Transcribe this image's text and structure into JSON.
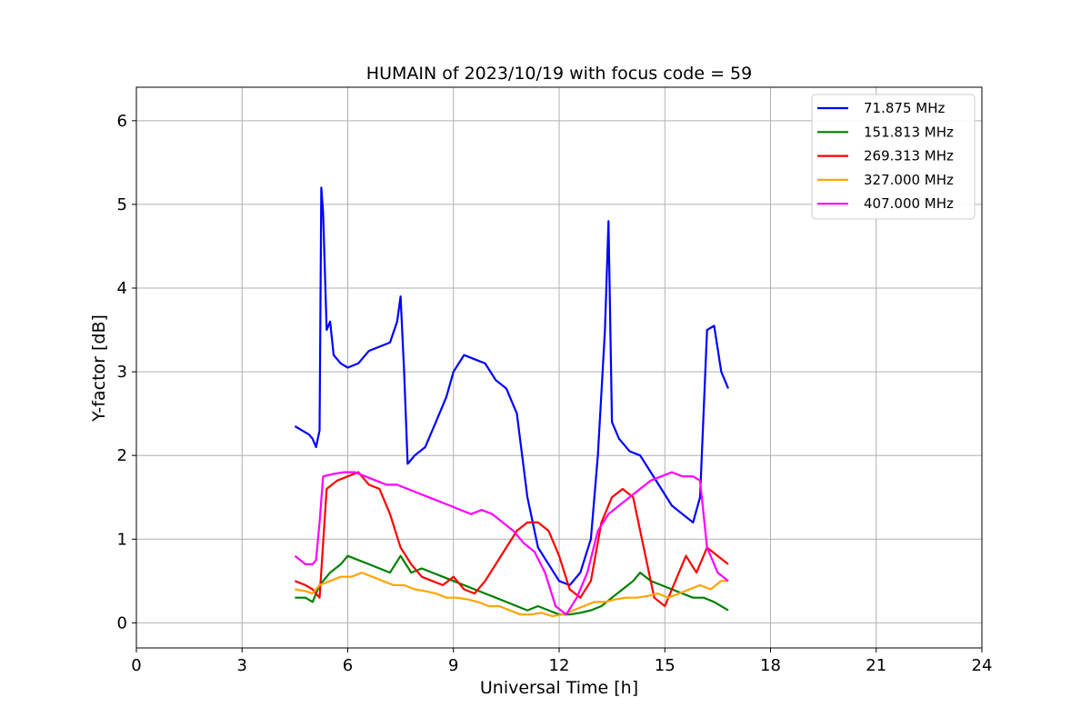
{
  "chart_data": {
    "type": "line",
    "title": "HUMAIN of 2023/10/19 with focus code = 59",
    "xlabel": "Universal Time [h]",
    "ylabel": "Y-factor [dB]",
    "xlim": [
      0,
      24
    ],
    "ylim": [
      -0.3,
      6.4
    ],
    "xticks": [
      0,
      3,
      6,
      9,
      12,
      15,
      18,
      21,
      24
    ],
    "yticks": [
      0,
      1,
      2,
      3,
      4,
      5,
      6
    ],
    "grid": true,
    "legend_position": "top-right",
    "series": [
      {
        "name": "71.875 MHz",
        "color": "#0000ff",
        "x": [
          4.5,
          4.7,
          4.9,
          5.0,
          5.1,
          5.2,
          5.25,
          5.3,
          5.4,
          5.5,
          5.6,
          5.8,
          6.0,
          6.3,
          6.6,
          6.9,
          7.2,
          7.4,
          7.5,
          7.6,
          7.7,
          7.9,
          8.2,
          8.5,
          8.8,
          9.0,
          9.3,
          9.6,
          9.9,
          10.2,
          10.5,
          10.8,
          11.1,
          11.4,
          11.7,
          12.0,
          12.3,
          12.6,
          12.9,
          13.1,
          13.3,
          13.4,
          13.5,
          13.7,
          14.0,
          14.3,
          14.6,
          14.9,
          15.2,
          15.5,
          15.8,
          16.0,
          16.2,
          16.4,
          16.6,
          16.8
        ],
        "y": [
          2.35,
          2.3,
          2.25,
          2.2,
          2.1,
          2.3,
          5.2,
          4.9,
          3.5,
          3.6,
          3.2,
          3.1,
          3.05,
          3.1,
          3.25,
          3.3,
          3.35,
          3.6,
          3.9,
          3.0,
          1.9,
          2.0,
          2.1,
          2.4,
          2.7,
          3.0,
          3.2,
          3.15,
          3.1,
          2.9,
          2.8,
          2.5,
          1.5,
          0.9,
          0.7,
          0.5,
          0.45,
          0.6,
          1.0,
          2.0,
          3.5,
          4.8,
          2.4,
          2.2,
          2.05,
          2.0,
          1.8,
          1.6,
          1.4,
          1.3,
          1.2,
          1.5,
          3.5,
          3.55,
          3.0,
          2.8
        ]
      },
      {
        "name": "151.813 MHz",
        "color": "#008000",
        "x": [
          4.5,
          4.8,
          5.0,
          5.2,
          5.5,
          5.8,
          6.0,
          6.3,
          6.6,
          6.9,
          7.2,
          7.5,
          7.8,
          8.1,
          8.4,
          8.7,
          9.0,
          9.3,
          9.6,
          9.9,
          10.2,
          10.5,
          10.8,
          11.1,
          11.4,
          11.7,
          12.0,
          12.3,
          12.6,
          12.9,
          13.2,
          13.5,
          13.8,
          14.1,
          14.3,
          14.6,
          14.9,
          15.2,
          15.5,
          15.8,
          16.1,
          16.4,
          16.8
        ],
        "y": [
          0.3,
          0.3,
          0.25,
          0.45,
          0.6,
          0.7,
          0.8,
          0.75,
          0.7,
          0.65,
          0.6,
          0.8,
          0.6,
          0.65,
          0.6,
          0.55,
          0.5,
          0.45,
          0.4,
          0.35,
          0.3,
          0.25,
          0.2,
          0.15,
          0.2,
          0.15,
          0.1,
          0.1,
          0.12,
          0.15,
          0.2,
          0.3,
          0.4,
          0.5,
          0.6,
          0.5,
          0.45,
          0.4,
          0.35,
          0.3,
          0.3,
          0.25,
          0.15
        ]
      },
      {
        "name": "269.313 MHz",
        "color": "#ff0000",
        "x": [
          4.5,
          4.8,
          5.0,
          5.2,
          5.4,
          5.7,
          6.0,
          6.3,
          6.6,
          6.9,
          7.2,
          7.5,
          7.8,
          8.1,
          8.4,
          8.7,
          9.0,
          9.3,
          9.6,
          9.9,
          10.2,
          10.5,
          10.8,
          11.1,
          11.4,
          11.7,
          12.0,
          12.3,
          12.6,
          12.9,
          13.2,
          13.5,
          13.8,
          14.1,
          14.4,
          14.7,
          15.0,
          15.3,
          15.6,
          15.9,
          16.2,
          16.5,
          16.8
        ],
        "y": [
          0.5,
          0.45,
          0.4,
          0.3,
          1.6,
          1.7,
          1.75,
          1.8,
          1.65,
          1.6,
          1.3,
          0.9,
          0.7,
          0.55,
          0.5,
          0.45,
          0.55,
          0.4,
          0.35,
          0.5,
          0.7,
          0.9,
          1.1,
          1.2,
          1.2,
          1.1,
          0.8,
          0.4,
          0.3,
          0.5,
          1.2,
          1.5,
          1.6,
          1.5,
          0.9,
          0.3,
          0.2,
          0.5,
          0.8,
          0.6,
          0.9,
          0.8,
          0.7
        ]
      },
      {
        "name": "327.000 MHz",
        "color": "#ffa500",
        "x": [
          4.5,
          4.8,
          5.0,
          5.2,
          5.5,
          5.8,
          6.1,
          6.4,
          6.7,
          7.0,
          7.3,
          7.6,
          7.9,
          8.2,
          8.5,
          8.8,
          9.1,
          9.4,
          9.7,
          10.0,
          10.3,
          10.6,
          10.9,
          11.2,
          11.5,
          11.8,
          12.1,
          12.4,
          12.7,
          13.0,
          13.3,
          13.6,
          13.9,
          14.2,
          14.5,
          14.8,
          15.1,
          15.4,
          15.7,
          16.0,
          16.3,
          16.6,
          16.8
        ],
        "y": [
          0.4,
          0.38,
          0.35,
          0.45,
          0.5,
          0.55,
          0.55,
          0.6,
          0.55,
          0.5,
          0.45,
          0.45,
          0.4,
          0.38,
          0.35,
          0.3,
          0.3,
          0.28,
          0.25,
          0.2,
          0.2,
          0.15,
          0.1,
          0.1,
          0.12,
          0.08,
          0.1,
          0.15,
          0.2,
          0.25,
          0.25,
          0.28,
          0.3,
          0.3,
          0.32,
          0.35,
          0.3,
          0.35,
          0.4,
          0.45,
          0.4,
          0.5,
          0.5
        ]
      },
      {
        "name": "407.000 MHz",
        "color": "#ff00ff",
        "x": [
          4.5,
          4.8,
          5.0,
          5.1,
          5.2,
          5.3,
          5.6,
          5.9,
          6.2,
          6.5,
          6.8,
          7.1,
          7.4,
          7.7,
          8.0,
          8.3,
          8.6,
          8.9,
          9.2,
          9.5,
          9.8,
          10.1,
          10.4,
          10.7,
          11.0,
          11.3,
          11.6,
          11.9,
          12.2,
          12.5,
          12.8,
          13.1,
          13.4,
          13.7,
          14.0,
          14.3,
          14.6,
          14.9,
          15.2,
          15.5,
          15.8,
          16.0,
          16.2,
          16.5,
          16.8
        ],
        "y": [
          0.8,
          0.7,
          0.7,
          0.75,
          1.2,
          1.75,
          1.78,
          1.8,
          1.8,
          1.75,
          1.7,
          1.65,
          1.65,
          1.6,
          1.55,
          1.5,
          1.45,
          1.4,
          1.35,
          1.3,
          1.35,
          1.3,
          1.2,
          1.1,
          0.95,
          0.85,
          0.6,
          0.2,
          0.1,
          0.3,
          0.6,
          1.1,
          1.3,
          1.4,
          1.5,
          1.6,
          1.7,
          1.75,
          1.8,
          1.75,
          1.75,
          1.7,
          0.9,
          0.6,
          0.5
        ]
      }
    ]
  }
}
